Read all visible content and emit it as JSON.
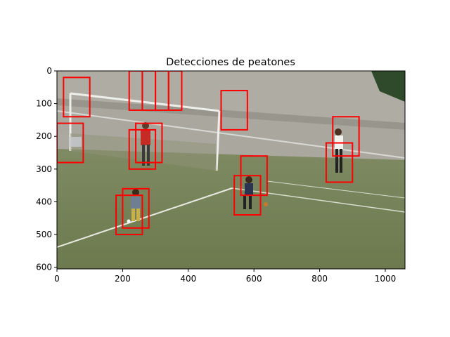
{
  "chart_data": {
    "type": "image-with-detections",
    "title": "Detecciones de peatones",
    "xlim": [
      0,
      1060
    ],
    "ylim": [
      605,
      0
    ],
    "x_ticks": [
      0,
      200,
      400,
      600,
      800,
      1000
    ],
    "y_ticks": [
      0,
      100,
      200,
      300,
      400,
      500,
      600
    ],
    "box_color": "#ff0000",
    "boxes": [
      {
        "x0": 20,
        "y0": 20,
        "x1": 100,
        "y1": 140
      },
      {
        "x0": 220,
        "y0": 0,
        "x1": 260,
        "y1": 120
      },
      {
        "x0": 260,
        "y0": 0,
        "x1": 300,
        "y1": 120
      },
      {
        "x0": 300,
        "y0": 0,
        "x1": 340,
        "y1": 120
      },
      {
        "x0": 340,
        "y0": 0,
        "x1": 380,
        "y1": 120
      },
      {
        "x0": 500,
        "y0": 60,
        "x1": 580,
        "y1": 180
      },
      {
        "x0": 840,
        "y0": 140,
        "x1": 920,
        "y1": 260
      },
      {
        "x0": 0,
        "y0": 160,
        "x1": 80,
        "y1": 280
      },
      {
        "x0": 240,
        "y0": 160,
        "x1": 320,
        "y1": 280
      },
      {
        "x0": 220,
        "y0": 180,
        "x1": 300,
        "y1": 300
      },
      {
        "x0": 820,
        "y0": 220,
        "x1": 900,
        "y1": 340
      },
      {
        "x0": 560,
        "y0": 260,
        "x1": 640,
        "y1": 380
      },
      {
        "x0": 540,
        "y0": 320,
        "x1": 620,
        "y1": 440
      },
      {
        "x0": 200,
        "y0": 360,
        "x1": 280,
        "y1": 480
      },
      {
        "x0": 180,
        "y0": 380,
        "x1": 260,
        "y1": 500
      }
    ],
    "scene_colors": {
      "sky": "#b9b7ad",
      "wall": "#a7a59d",
      "grass": "#7d8a5f",
      "grass_dark": "#6e7b52",
      "trees": "#2f4a2a"
    }
  }
}
